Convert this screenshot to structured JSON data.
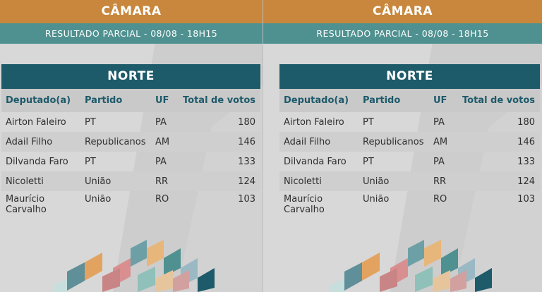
{
  "panels": [
    {
      "header": {
        "title": "CÂMARA",
        "subtitle": "RESULTADO PARCIAL - 08/08 - 18H15"
      },
      "region": "NORTE",
      "columns": [
        "Deputado(a)",
        "Partido",
        "UF",
        "Total de votos"
      ],
      "rows": [
        {
          "name": "Airton Faleiro",
          "party": "PT",
          "uf": "PA",
          "votes": "180"
        },
        {
          "name": "Adail Filho",
          "party": "Republicanos",
          "uf": "AM",
          "votes": "146"
        },
        {
          "name": "Dilvanda Faro",
          "party": "PT",
          "uf": "PA",
          "votes": "133"
        },
        {
          "name": "Nicoletti",
          "party": "União",
          "uf": "RR",
          "votes": "124"
        },
        {
          "name_line1": "Maurício",
          "name_line2": "Carvalho",
          "party": "União",
          "uf": "RO",
          "votes": "103"
        }
      ]
    },
    {
      "header": {
        "title": "CÂMARA",
        "subtitle": "RESULTADO PARCIAL - 08/08 - 18H15"
      },
      "region": "NORTE",
      "columns": [
        "Deputado(a)",
        "Partido",
        "UF",
        "Total de votos"
      ],
      "rows": [
        {
          "name": "Airton Faleiro",
          "party": "PT",
          "uf": "PA",
          "votes": "180"
        },
        {
          "name": "Adail Filho",
          "party": "Republicanos",
          "uf": "AM",
          "votes": "146"
        },
        {
          "name": "Dilvanda Faro",
          "party": "PT",
          "uf": "PA",
          "votes": "133"
        },
        {
          "name": "Nicoletti",
          "party": "União",
          "uf": "RR",
          "votes": "124"
        },
        {
          "name_line1": "Maurício",
          "name_line2": "Carvalho",
          "party": "União",
          "uf": "RO",
          "votes": "103"
        }
      ]
    }
  ],
  "colors": {
    "top_bar": "#c8873c",
    "sub_bar": "#4f9190",
    "region_header": "#1d5a6a",
    "header_text": "#1d5a6a",
    "background": "#d8d8d8"
  }
}
